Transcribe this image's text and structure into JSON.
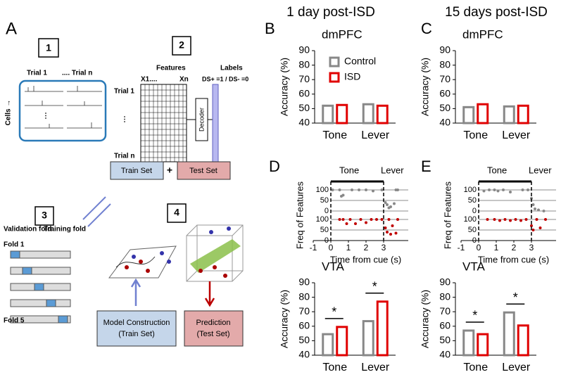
{
  "panels": [
    "A",
    "B",
    "C",
    "D",
    "E"
  ],
  "headers": [
    "1 day post-ISD",
    "15 days post-ISD"
  ],
  "diagram": {
    "step_labels": [
      "1",
      "2",
      "3",
      "4"
    ],
    "trial_first": "Trial 1",
    "trial_last": ".... Trial n",
    "cells": "Cells →",
    "features": "Features",
    "labels": "Labels",
    "x1": "X1....",
    "xn": "Xn",
    "ds": "DS+ =1 / DS- =0",
    "row_first": "Trial 1",
    "row_last": "Trial n",
    "decoder": "Decoder",
    "train_set": "Train Set",
    "plus": "+",
    "test_set": "Test Set",
    "validation_fold": "Validation fold",
    "training_fold": "Training fold",
    "fold_first": "Fold 1",
    "fold_last": "Fold 5",
    "model_construction": [
      "Model Construction",
      "(Train Set)"
    ],
    "prediction": [
      "Prediction",
      "(Test Set)"
    ]
  },
  "chart_data": [
    {
      "type": "bar",
      "title": "dmPFC",
      "ylabel": "Accuracy (%)",
      "categories": [
        "Tone",
        "Lever"
      ],
      "series": [
        {
          "name": "Control",
          "color": "#888888",
          "values": [
            52,
            53
          ]
        },
        {
          "name": "ISD",
          "color": "#e00000",
          "values": [
            52.5,
            52
          ]
        }
      ],
      "ylim": [
        40,
        90
      ],
      "yticks": [
        40,
        50,
        60,
        70,
        80,
        90
      ],
      "legend": true
    },
    {
      "type": "bar",
      "title": "dmPFC",
      "ylabel": "Accuracy (%)",
      "categories": [
        "Tone",
        "Lever"
      ],
      "series": [
        {
          "color": "#888888",
          "values": [
            51,
            51.5
          ]
        },
        {
          "color": "#e00000",
          "values": [
            53,
            52
          ]
        }
      ],
      "ylim": [
        40,
        90
      ],
      "yticks": [
        40,
        50,
        60,
        70,
        80,
        90
      ]
    },
    {
      "type": "scatter",
      "ylabel": "Freq of Features",
      "xlabel": "Time from cue (s)",
      "series": [
        {
          "color": "#888888",
          "x": [
            0.1,
            0.5,
            0.6,
            0.7,
            1.2,
            1.6,
            2.0,
            2.4,
            2.9,
            3.1,
            3.2,
            3.3,
            3.4,
            3.6,
            3.7,
            3.8
          ],
          "values": [
            100,
            100,
            70,
            75,
            100,
            100,
            100,
            95,
            100,
            40,
            30,
            15,
            20,
            35,
            100,
            100
          ]
        },
        {
          "color": "#c00000",
          "x": [
            0.5,
            0.7,
            0.9,
            1.1,
            1.4,
            1.7,
            2.0,
            2.3,
            2.6,
            2.9,
            3.1,
            3.2,
            3.3,
            3.4,
            3.5,
            3.7,
            3.8
          ],
          "values": [
            100,
            100,
            80,
            100,
            80,
            100,
            85,
            100,
            100,
            100,
            60,
            40,
            100,
            30,
            70,
            35,
            100
          ]
        }
      ],
      "xlim": [
        -1,
        4
      ],
      "xticks": [
        -1,
        0,
        1,
        2,
        3
      ],
      "ylim": [
        0,
        100
      ],
      "yticks": [
        0,
        50,
        100
      ],
      "annotations": [
        {
          "text": "Tone",
          "x": 0,
          "x_end": 3
        },
        {
          "text": "Lever",
          "x": 3
        }
      ]
    },
    {
      "type": "bar",
      "title": "VTA",
      "ylabel": "Accuracy (%)",
      "categories": [
        "Tone",
        "Lever"
      ],
      "series": [
        {
          "color": "#888888",
          "values": [
            54.5,
            63.5
          ]
        },
        {
          "color": "#e00000",
          "values": [
            59.5,
            77
          ]
        }
      ],
      "ylim": [
        40,
        90
      ],
      "yticks": [
        40,
        50,
        60,
        70,
        80,
        90
      ],
      "significance": [
        "*",
        "*"
      ]
    },
    {
      "type": "scatter",
      "ylabel": "Freq of Features",
      "xlabel": "Time from cue (s)",
      "series": [
        {
          "color": "#888888",
          "x": [
            0.3,
            0.6,
            0.9,
            1.1,
            1.4,
            1.8,
            2.5,
            2.8,
            3.0,
            3.1,
            3.2,
            3.4,
            3.7
          ],
          "values": [
            95,
            100,
            100,
            95,
            100,
            90,
            100,
            100,
            60,
            30,
            10,
            5,
            0
          ]
        },
        {
          "color": "#c00000",
          "x": [
            0.5,
            0.9,
            1.2,
            1.5,
            1.8,
            2.1,
            2.4,
            2.7,
            3.0,
            3.1,
            3.3,
            3.5,
            3.8
          ],
          "values": [
            100,
            100,
            95,
            100,
            95,
            100,
            95,
            100,
            70,
            50,
            100,
            60,
            100
          ]
        }
      ],
      "xlim": [
        -1,
        4
      ],
      "xticks": [
        -1,
        0,
        1,
        2,
        3
      ],
      "ylim": [
        0,
        100
      ],
      "yticks": [
        0,
        50,
        100
      ],
      "annotations": [
        {
          "text": "Tone",
          "x": 0,
          "x_end": 3
        },
        {
          "text": "Lever",
          "x": 3
        }
      ]
    },
    {
      "type": "bar",
      "title": "VTA",
      "ylabel": "Accuracy (%)",
      "categories": [
        "Tone",
        "Lever"
      ],
      "series": [
        {
          "color": "#888888",
          "values": [
            57,
            69.5
          ]
        },
        {
          "color": "#e00000",
          "values": [
            54.5,
            60.5
          ]
        }
      ],
      "ylim": [
        40,
        90
      ],
      "yticks": [
        40,
        50,
        60,
        70,
        80,
        90
      ],
      "significance": [
        "*",
        "*"
      ]
    }
  ]
}
